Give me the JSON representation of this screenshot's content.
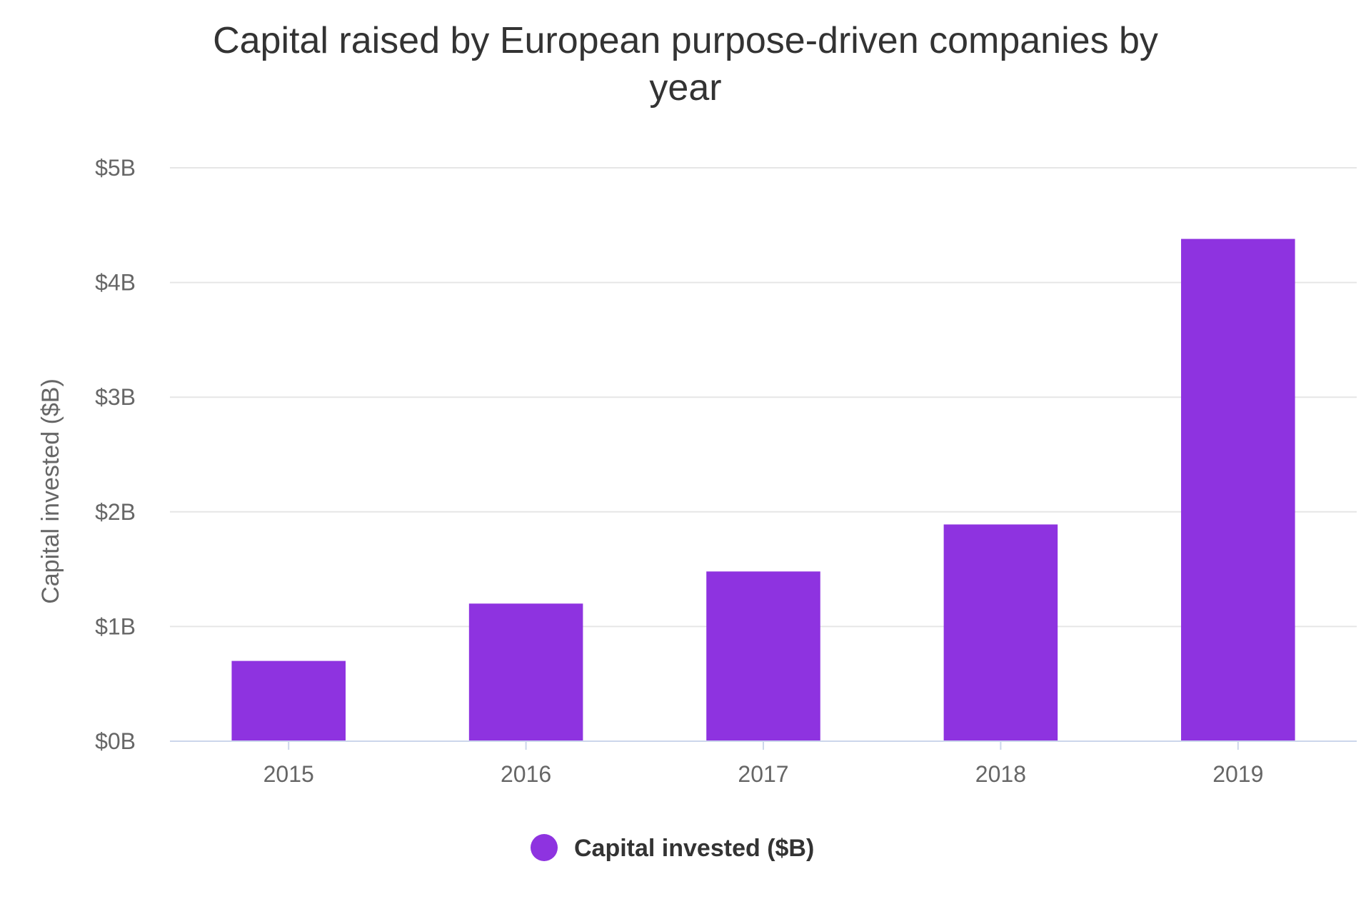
{
  "chart_data": {
    "type": "bar",
    "title_lines": [
      "Capital raised by European purpose-driven companies by",
      "year"
    ],
    "title": "Capital raised by European purpose-driven companies by year",
    "xlabel": "",
    "ylabel": "Capital invested ($B)",
    "categories": [
      "2015",
      "2016",
      "2017",
      "2018",
      "2019"
    ],
    "series": [
      {
        "name": "Capital invested ($B)",
        "color": "#8e33e0",
        "values": [
          0.7,
          1.2,
          1.48,
          1.89,
          4.38
        ]
      }
    ],
    "ylim": [
      0,
      5
    ],
    "yticks": [
      0,
      1,
      2,
      3,
      4,
      5
    ],
    "ytick_labels": [
      "$0B",
      "$1B",
      "$2B",
      "$3B",
      "$4B",
      "$5B"
    ],
    "grid": true,
    "legend_position": "bottom",
    "colors": {
      "bar": "#8e33e0",
      "grid": "#e6e6e6",
      "axis_line": "#ccd6eb",
      "title": "#333333",
      "tick_label": "#666666"
    }
  }
}
